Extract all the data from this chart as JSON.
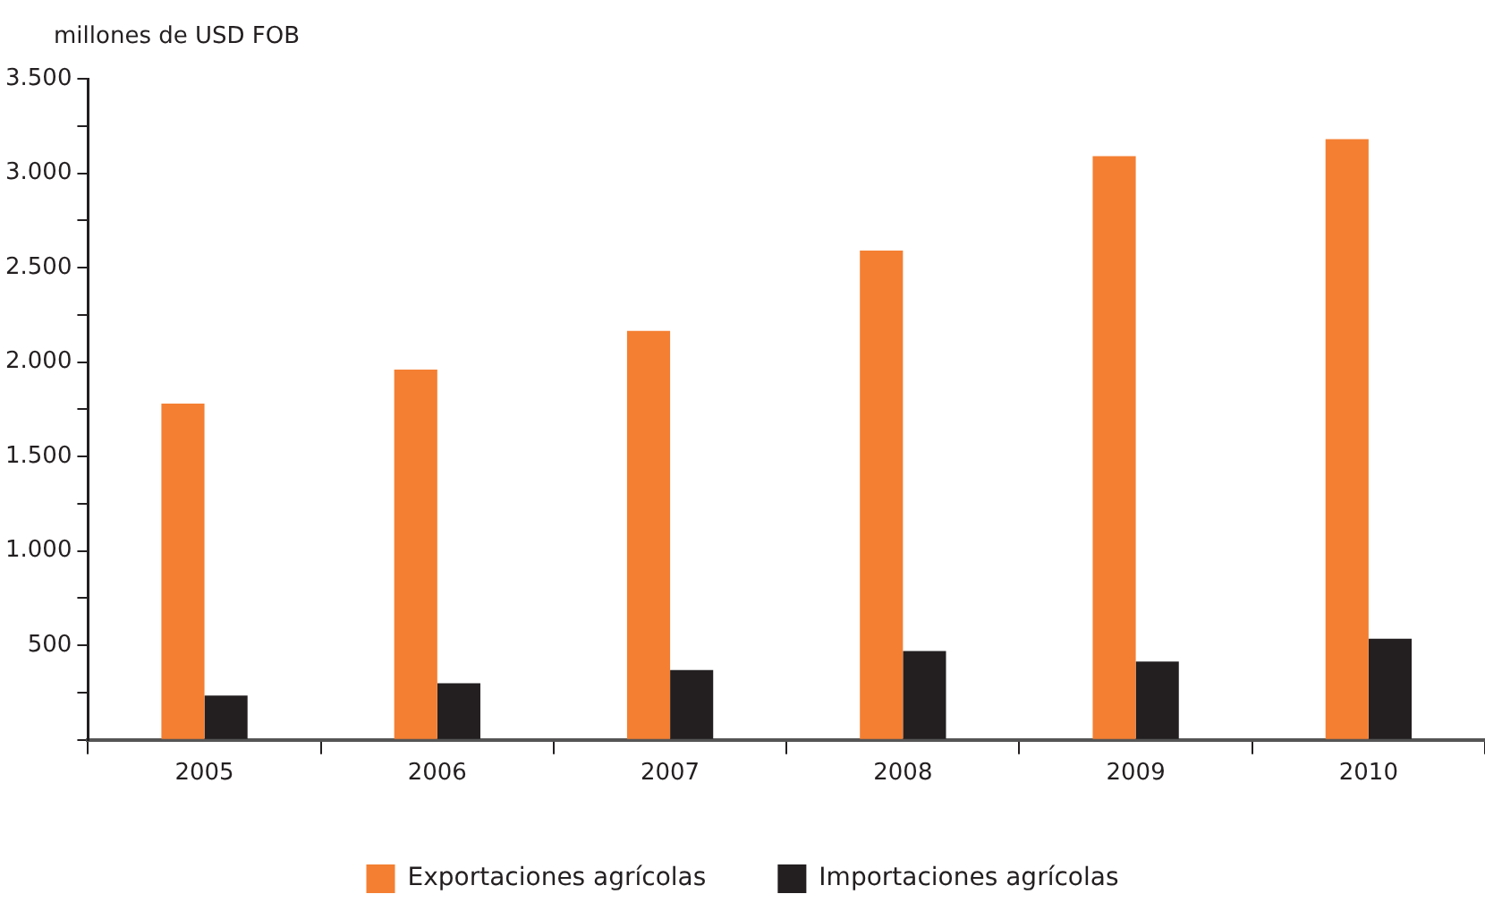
{
  "chart_data": {
    "type": "bar",
    "ylabel": "millones de USD FOB",
    "categories": [
      "2005",
      "2006",
      "2007",
      "2008",
      "2009",
      "2010"
    ],
    "series": [
      {
        "name": "Exportaciones agrícolas",
        "color": "#f47f32",
        "values": [
          1780,
          1960,
          2165,
          2590,
          3090,
          3180
        ]
      },
      {
        "name": "Importaciones agrícolas",
        "color": "#231f20",
        "values": [
          235,
          300,
          370,
          470,
          415,
          535
        ]
      }
    ],
    "ylim": [
      0,
      3500
    ],
    "yticks": [
      {
        "value": 0,
        "label": null
      },
      {
        "value": 250,
        "label": null
      },
      {
        "value": 500,
        "label": "500"
      },
      {
        "value": 750,
        "label": null
      },
      {
        "value": 1000,
        "label": "1.000"
      },
      {
        "value": 1250,
        "label": null
      },
      {
        "value": 1500,
        "label": "1.500"
      },
      {
        "value": 1750,
        "label": null
      },
      {
        "value": 2000,
        "label": "2.000"
      },
      {
        "value": 2250,
        "label": null
      },
      {
        "value": 2500,
        "label": "2.500"
      },
      {
        "value": 2750,
        "label": null
      },
      {
        "value": 3000,
        "label": "3.000"
      },
      {
        "value": 3250,
        "label": null
      },
      {
        "value": 3500,
        "label": "3.500"
      }
    ],
    "grid": false,
    "legend": "bottom"
  }
}
